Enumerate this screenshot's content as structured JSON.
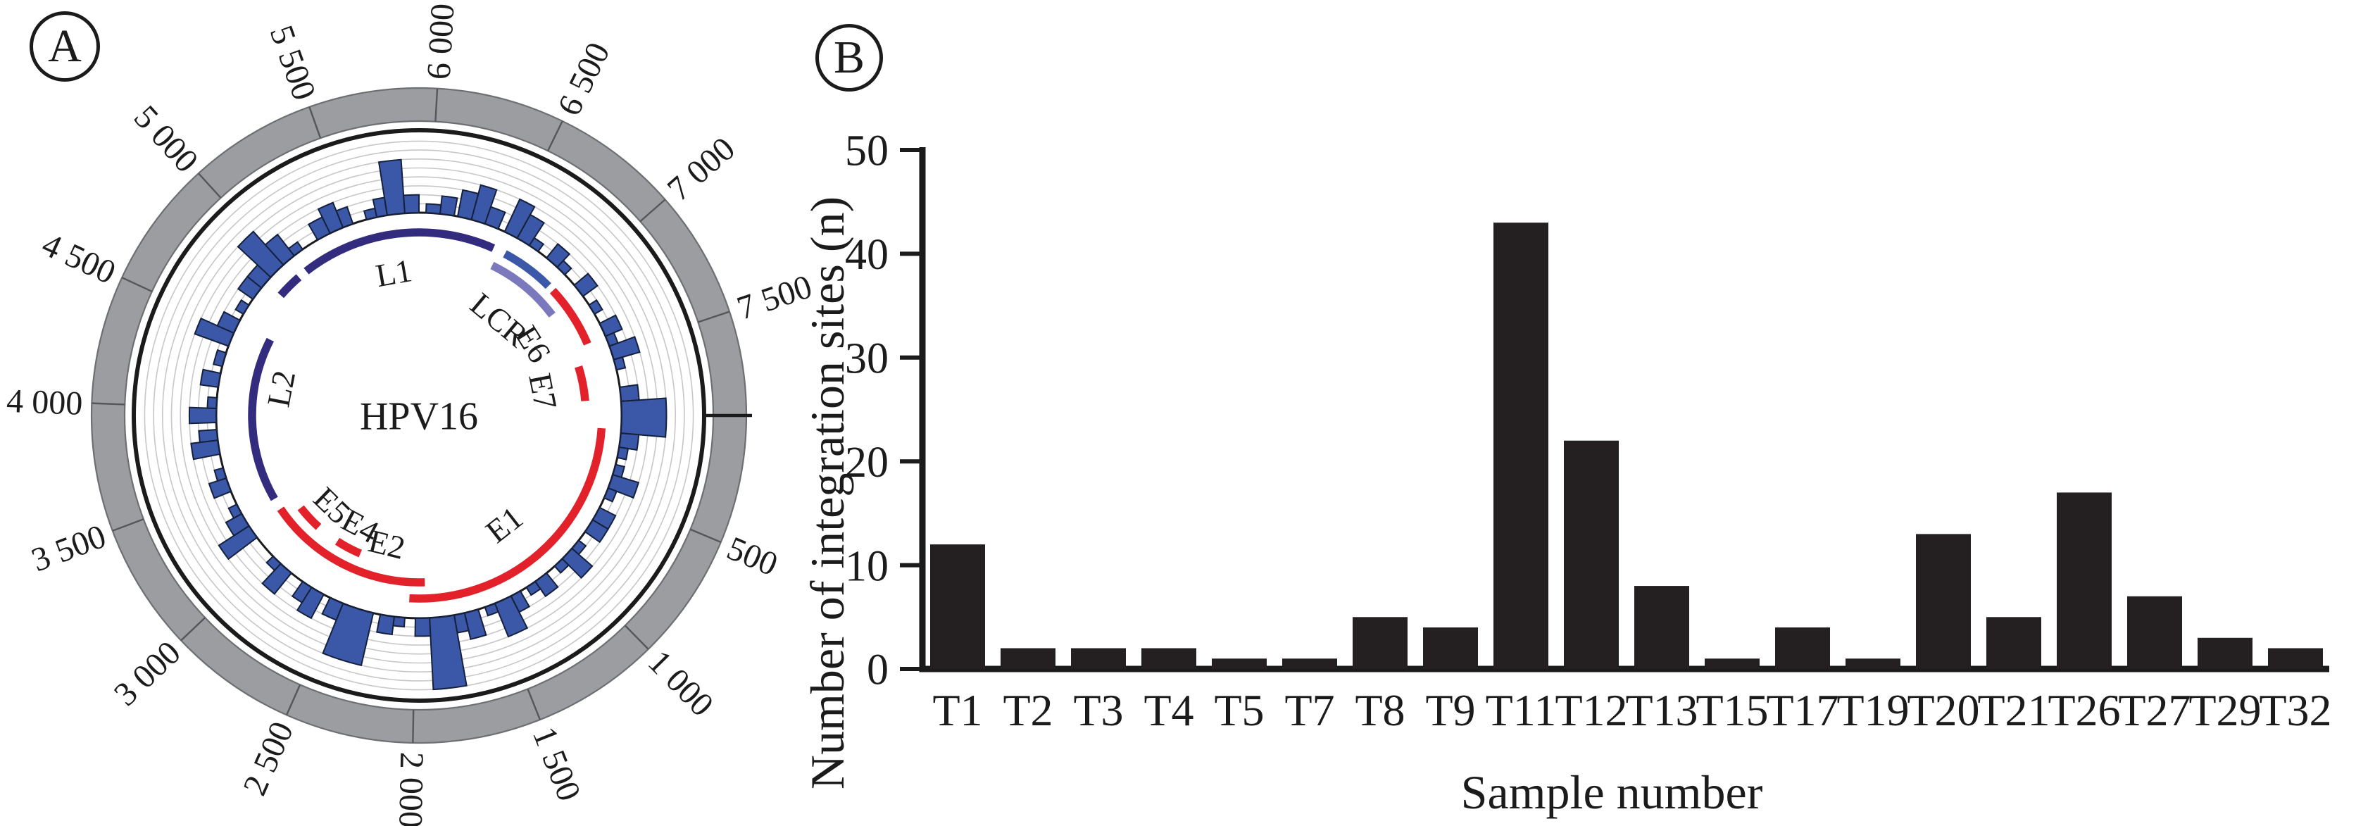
{
  "figure_type": "two-panel scientific figure",
  "chart_data": [
    {
      "type": "circular-histogram",
      "panel": "A",
      "badge": "A",
      "center_label": "HPV16",
      "genome_length_bp": 7906,
      "axis_tick_interval_bp": 500,
      "axis_ticks": [
        {
          "bp": 500,
          "label": "500"
        },
        {
          "bp": 1000,
          "label": "1 000"
        },
        {
          "bp": 1500,
          "label": "1 500"
        },
        {
          "bp": 2000,
          "label": "2 000"
        },
        {
          "bp": 2500,
          "label": "2 500"
        },
        {
          "bp": 3000,
          "label": "3 000"
        },
        {
          "bp": 3500,
          "label": "3 500"
        },
        {
          "bp": 4000,
          "label": "4 000"
        },
        {
          "bp": 4500,
          "label": "4 500"
        },
        {
          "bp": 5000,
          "label": "5 000"
        },
        {
          "bp": 5500,
          "label": "5 500"
        },
        {
          "bp": 6000,
          "label": "6 000"
        },
        {
          "bp": 6500,
          "label": "6 500"
        },
        {
          "bp": 7000,
          "label": "7 000"
        },
        {
          "bp": 7500,
          "label": "7 500"
        }
      ],
      "zero_tick_deg": 0,
      "gridline_count": 8,
      "histogram_units_max": 8,
      "genes": [
        {
          "name": "L1",
          "label": "L1",
          "color": "#332c7e",
          "track": "outer",
          "start_deg": -128,
          "end_deg": -66,
          "label_deg": -100,
          "label_r": 206
        },
        {
          "name": "L1-tail",
          "label": "",
          "color": "#332c7e",
          "track": "outer",
          "start_deg": -139,
          "end_deg": -131
        },
        {
          "name": "L2",
          "label": "L2",
          "color": "#332c7e",
          "track": "mid",
          "start_deg": 150,
          "end_deg": 207,
          "label_deg": 191,
          "label_r": 200
        },
        {
          "name": "LCR",
          "label": "LCR",
          "color": "#7b78be",
          "track": "mid",
          "start_deg": -64,
          "end_deg": -37,
          "label_deg": -50,
          "label_r": 178
        },
        {
          "name": "LCR-outer-segment",
          "label": "",
          "color": "#3a58a7",
          "track": "outer",
          "start_deg": -62,
          "end_deg": -45
        },
        {
          "name": "E6",
          "label": "E6",
          "color": "#e2212a",
          "track": "outer",
          "start_deg": -43,
          "end_deg": -23,
          "label_deg": -32,
          "label_r": 192
        },
        {
          "name": "E7",
          "label": "E7",
          "color": "#e2212a",
          "track": "mid",
          "start_deg": -17,
          "end_deg": -5,
          "label_deg": -11,
          "label_r": 180
        },
        {
          "name": "E1",
          "label": "E1",
          "color": "#e2212a",
          "track": "outer",
          "start_deg": 4,
          "end_deg": 93,
          "label_deg": 52,
          "label_r": 196
        },
        {
          "name": "E2",
          "label": "E2",
          "color": "#e2212a",
          "track": "mid",
          "start_deg": 88,
          "end_deg": 146,
          "label_deg": 104,
          "label_r": 188
        },
        {
          "name": "E4",
          "label": "E4",
          "color": "#e2212a",
          "track": "inner",
          "start_deg": 113,
          "end_deg": 123,
          "label_deg": 118,
          "label_r": 177
        },
        {
          "name": "E5",
          "label": "E5",
          "color": "#e2212a",
          "track": "inner",
          "start_deg": 132,
          "end_deg": 142,
          "label_deg": 134,
          "label_r": 177
        }
      ],
      "integration_histogram_bars_deg_width_height": [
        [
          352,
          4,
          2
        ],
        [
          356,
          9,
          5
        ],
        [
          5,
          4,
          2
        ],
        [
          9,
          3,
          1
        ],
        [
          14,
          4,
          1
        ],
        [
          17,
          4,
          3
        ],
        [
          21,
          3,
          1
        ],
        [
          27,
          4,
          2
        ],
        [
          31,
          4,
          2
        ],
        [
          38,
          3,
          1
        ],
        [
          41,
          4,
          3
        ],
        [
          45,
          3,
          1
        ],
        [
          51,
          4,
          2
        ],
        [
          55,
          3,
          1
        ],
        [
          60,
          3,
          2
        ],
        [
          63,
          5,
          4
        ],
        [
          68,
          3,
          1
        ],
        [
          73,
          4,
          3
        ],
        [
          77,
          3,
          2
        ],
        [
          80,
          7,
          8
        ],
        [
          87,
          4,
          2
        ],
        [
          94,
          3,
          1
        ],
        [
          97,
          4,
          2
        ],
        [
          103,
          9,
          6
        ],
        [
          112,
          4,
          2
        ],
        [
          118,
          4,
          3
        ],
        [
          122,
          3,
          2
        ],
        [
          129,
          4,
          3
        ],
        [
          133,
          3,
          1
        ],
        [
          143,
          4,
          4
        ],
        [
          147,
          4,
          2
        ],
        [
          151,
          3,
          1
        ],
        [
          158,
          4,
          2
        ],
        [
          162,
          3,
          1
        ],
        [
          169,
          4,
          3
        ],
        [
          173,
          3,
          2
        ],
        [
          178,
          4,
          3
        ],
        [
          182,
          3,
          1
        ],
        [
          188,
          4,
          2
        ],
        [
          194,
          4,
          1
        ],
        [
          200,
          4,
          4
        ],
        [
          204,
          4,
          2
        ],
        [
          210,
          3,
          1
        ],
        [
          215,
          4,
          2
        ],
        [
          219,
          4,
          2
        ],
        [
          223,
          5,
          5
        ],
        [
          228,
          4,
          3
        ],
        [
          232,
          3,
          1
        ],
        [
          240,
          4,
          2
        ],
        [
          244,
          4,
          3
        ],
        [
          248,
          3,
          2
        ],
        [
          255,
          3,
          1
        ],
        [
          258,
          3,
          2
        ],
        [
          261,
          5,
          6
        ],
        [
          266,
          4,
          2
        ],
        [
          272,
          4,
          1
        ],
        [
          276,
          4,
          2
        ],
        [
          281,
          4,
          3
        ],
        [
          285,
          4,
          4
        ],
        [
          289,
          4,
          2
        ],
        [
          295,
          4,
          4
        ],
        [
          299,
          4,
          3
        ],
        [
          303,
          3,
          1
        ],
        [
          309,
          4,
          2
        ],
        [
          313,
          3,
          1
        ],
        [
          320,
          4,
          2
        ],
        [
          327,
          3,
          1
        ],
        [
          333,
          4,
          2
        ],
        [
          337,
          3,
          1
        ],
        [
          340,
          4,
          3
        ],
        [
          344,
          3,
          1
        ]
      ],
      "colors": {
        "histogram_bar": "#3a58a7",
        "histogram_bar_outline": "#15203c",
        "late_gene": "#332c7e",
        "early_gene": "#e2212a",
        "lcr": "#7b78be",
        "outer_ring": "#9b9da1",
        "ring_edge": "#6e6f73",
        "gridline": "#c7c7c7",
        "axis_black": "#1b1b1b"
      }
    },
    {
      "type": "bar",
      "panel": "B",
      "badge": "B",
      "categories": [
        "T1",
        "T2",
        "T3",
        "T4",
        "T5",
        "T7",
        "T8",
        "T9",
        "T11",
        "T12",
        "T13",
        "T15",
        "T17",
        "T19",
        "T20",
        "T21",
        "T26",
        "T27",
        "T29",
        "T32"
      ],
      "values": [
        12,
        2,
        2,
        2,
        1,
        1,
        5,
        4,
        43,
        22,
        8,
        1,
        4,
        1,
        13,
        5,
        17,
        7,
        3,
        2
      ],
      "xlabel": "Sample number",
      "ylabel": "Number of integration sites (n)",
      "yticks": [
        0,
        10,
        20,
        30,
        40,
        50
      ],
      "ylim": [
        0,
        50
      ],
      "grid": false,
      "bar_color": "#242021",
      "axis_color": "#1b1b1b"
    }
  ]
}
